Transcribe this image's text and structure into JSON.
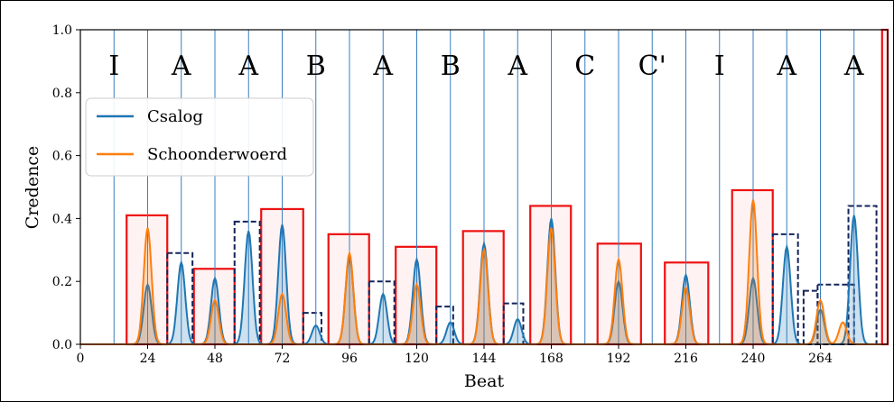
{
  "chart_data": {
    "type": "area",
    "xlabel": "Beat",
    "ylabel": "Credence",
    "xlim": [
      0,
      288
    ],
    "ylim": [
      0,
      1.0
    ],
    "xticks": [
      0,
      24,
      48,
      72,
      96,
      120,
      144,
      168,
      192,
      216,
      240,
      264
    ],
    "yticks": [
      0.0,
      0.2,
      0.4,
      0.6,
      0.8,
      1.0
    ],
    "xtick_labels": [
      "0",
      "24",
      "48",
      "72",
      "96",
      "120",
      "144",
      "168",
      "192",
      "216",
      "240",
      "264"
    ],
    "ytick_labels": [
      "0.0",
      "0.2",
      "0.4",
      "0.6",
      "0.8",
      "1.0"
    ],
    "legend": {
      "position": "upper-left",
      "entries": [
        "Csalog",
        "Schoonderwoerd"
      ]
    },
    "section_labels": [
      {
        "label": "I",
        "x": 12
      },
      {
        "label": "A",
        "x": 36
      },
      {
        "label": "A",
        "x": 60
      },
      {
        "label": "B",
        "x": 84
      },
      {
        "label": "A",
        "x": 108
      },
      {
        "label": "B",
        "x": 132
      },
      {
        "label": "A",
        "x": 156
      },
      {
        "label": "C",
        "x": 180
      },
      {
        "label": "C'",
        "x": 204
      },
      {
        "label": "I",
        "x": 228
      },
      {
        "label": "A",
        "x": 252
      },
      {
        "label": "A",
        "x": 276
      }
    ],
    "boundaries": [
      12,
      24,
      36,
      48,
      60,
      72,
      84,
      96,
      108,
      120,
      132,
      144,
      156,
      168,
      180,
      192,
      204,
      216,
      228,
      240,
      252,
      264,
      276
    ],
    "series": [
      {
        "name": "Csalog",
        "color": "#1f77b4",
        "peaks": [
          {
            "x": 24,
            "h": 0.19
          },
          {
            "x": 36,
            "h": 0.26
          },
          {
            "x": 48,
            "h": 0.21
          },
          {
            "x": 60,
            "h": 0.36
          },
          {
            "x": 72,
            "h": 0.38
          },
          {
            "x": 84,
            "h": 0.06
          },
          {
            "x": 96,
            "h": 0.28
          },
          {
            "x": 108,
            "h": 0.16
          },
          {
            "x": 120,
            "h": 0.27
          },
          {
            "x": 132,
            "h": 0.07
          },
          {
            "x": 144,
            "h": 0.32
          },
          {
            "x": 156,
            "h": 0.08
          },
          {
            "x": 168,
            "h": 0.4
          },
          {
            "x": 192,
            "h": 0.2
          },
          {
            "x": 216,
            "h": 0.22
          },
          {
            "x": 240,
            "h": 0.21
          },
          {
            "x": 252,
            "h": 0.31
          },
          {
            "x": 264,
            "h": 0.11
          },
          {
            "x": 276,
            "h": 0.41
          }
        ]
      },
      {
        "name": "Schoonderwoerd",
        "color": "#ff7f0e",
        "peaks": [
          {
            "x": 24,
            "h": 0.37
          },
          {
            "x": 48,
            "h": 0.14
          },
          {
            "x": 72,
            "h": 0.16
          },
          {
            "x": 96,
            "h": 0.29
          },
          {
            "x": 120,
            "h": 0.19
          },
          {
            "x": 144,
            "h": 0.3
          },
          {
            "x": 168,
            "h": 0.37
          },
          {
            "x": 192,
            "h": 0.27
          },
          {
            "x": 216,
            "h": 0.18
          },
          {
            "x": 240,
            "h": 0.46
          },
          {
            "x": 264,
            "h": 0.14
          },
          {
            "x": 272,
            "h": 0.07
          }
        ]
      }
    ],
    "red_boxes": [
      {
        "x0": 16.5,
        "x1": 31,
        "y": 0.41
      },
      {
        "x0": 40.5,
        "x1": 55,
        "y": 0.24
      },
      {
        "x0": 64.5,
        "x1": 79.5,
        "y": 0.43
      },
      {
        "x0": 88.5,
        "x1": 103,
        "y": 0.35
      },
      {
        "x0": 112.5,
        "x1": 127,
        "y": 0.31
      },
      {
        "x0": 136.5,
        "x1": 151,
        "y": 0.36
      },
      {
        "x0": 160.5,
        "x1": 175,
        "y": 0.44
      },
      {
        "x0": 184.5,
        "x1": 200,
        "y": 0.32
      },
      {
        "x0": 208.5,
        "x1": 224,
        "y": 0.26
      },
      {
        "x0": 232.5,
        "x1": 247,
        "y": 0.49
      },
      {
        "x0": 286,
        "x1": 288,
        "y": 1.0
      }
    ],
    "navy_boxes": [
      {
        "x0": 31,
        "x1": 40,
        "y": 0.29
      },
      {
        "x0": 55,
        "x1": 64,
        "y": 0.39
      },
      {
        "x0": 79.5,
        "x1": 86,
        "y": 0.1
      },
      {
        "x0": 103,
        "x1": 112,
        "y": 0.2
      },
      {
        "x0": 127,
        "x1": 133,
        "y": 0.12
      },
      {
        "x0": 151,
        "x1": 158,
        "y": 0.13
      },
      {
        "x0": 247,
        "x1": 256,
        "y": 0.35
      },
      {
        "x0": 258,
        "x1": 263,
        "y": 0.17
      },
      {
        "x0": 263,
        "x1": 276,
        "y": 0.19
      },
      {
        "x0": 274,
        "x1": 284,
        "y": 0.44
      }
    ]
  }
}
